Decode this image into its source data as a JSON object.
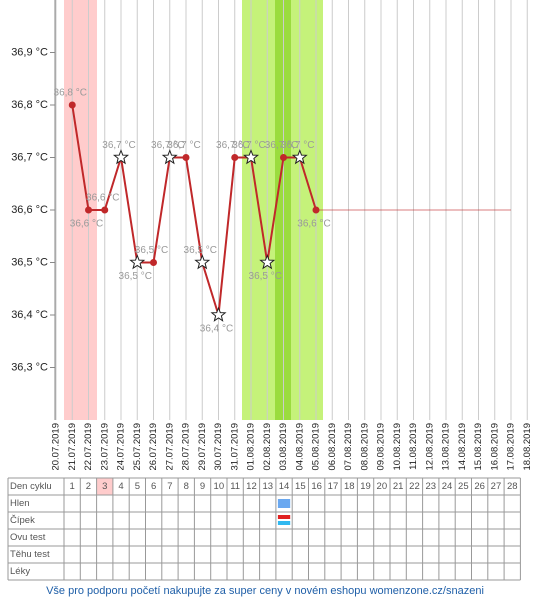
{
  "chart_data": {
    "type": "line",
    "categories": [
      "20.07.2019",
      "21.07.2019",
      "22.07.2019",
      "23.07.2019",
      "24.07.2019",
      "25.07.2019",
      "26.07.2019",
      "27.07.2019",
      "28.07.2019",
      "29.07.2019",
      "30.07.2019",
      "31.07.2019",
      "01.08.2019",
      "02.08.2019",
      "03.08.2019",
      "04.08.2019",
      "05.08.2019",
      "06.08.2019",
      "07.08.2019",
      "08.08.2019",
      "09.08.2019",
      "10.08.2019",
      "11.08.2019",
      "12.08.2019",
      "13.08.2019",
      "14.08.2019",
      "15.08.2019",
      "16.08.2019",
      "17.08.2019",
      "18.08.2019"
    ],
    "values": [
      null,
      36.8,
      36.6,
      36.6,
      36.7,
      36.5,
      36.5,
      36.7,
      36.7,
      36.5,
      36.4,
      36.7,
      36.7,
      36.5,
      36.7,
      36.7,
      36.6,
      null,
      null,
      null,
      null,
      null,
      null,
      null,
      null,
      null,
      null,
      null,
      null,
      null
    ],
    "value_labels": [
      null,
      "36,8 °C",
      "36,6 °C",
      "36,6 °C",
      "36,7 °C",
      "36,5 °C",
      "36,5 °C",
      "36,7 °C",
      "36,7 °C",
      "36,5 °C",
      "36,4 °C",
      "36,7 °C",
      "36,7 °C",
      "36,5 °C",
      "36,7 °C",
      "36,7 °C",
      "36,6 °C",
      null,
      null,
      null,
      null,
      null,
      null,
      null,
      null,
      null,
      null,
      null,
      null,
      null
    ],
    "markers": [
      null,
      "dot",
      "dot",
      "dot",
      "star",
      "star",
      "dot",
      "star",
      "dot",
      "star",
      "star",
      "dot",
      "star",
      "star",
      "dot",
      "star",
      "dot",
      null,
      null,
      null,
      null,
      null,
      null,
      null,
      null,
      null,
      null,
      null,
      null,
      null
    ],
    "color": "#c0282a",
    "ylim": [
      36.2,
      37.0
    ],
    "yticks": [
      {
        "value": 36.3,
        "label": "36,3 °C"
      },
      {
        "value": 36.4,
        "label": "36,4 °C"
      },
      {
        "value": 36.5,
        "label": "36,5 °C"
      },
      {
        "value": 36.6,
        "label": "36,6 °C"
      },
      {
        "value": 36.7,
        "label": "36,7 °C"
      },
      {
        "value": 36.8,
        "label": "36,8 °C"
      },
      {
        "value": 36.9,
        "label": "36,9 °C"
      }
    ],
    "grid": true
  },
  "table": {
    "header": "Den cyklu",
    "days": [
      1,
      2,
      3,
      4,
      5,
      6,
      7,
      8,
      9,
      10,
      11,
      12,
      13,
      14,
      15,
      16,
      17,
      18,
      19,
      20,
      21,
      22,
      23,
      24,
      25,
      26,
      27,
      28
    ],
    "rows": [
      "Hlen",
      "Čípek",
      "Ovu test",
      "Těhu test",
      "Léky"
    ]
  },
  "footer": "Vše pro podporu početí nakupujte za super ceny v novém eshopu womenzone.cz/snazeni"
}
